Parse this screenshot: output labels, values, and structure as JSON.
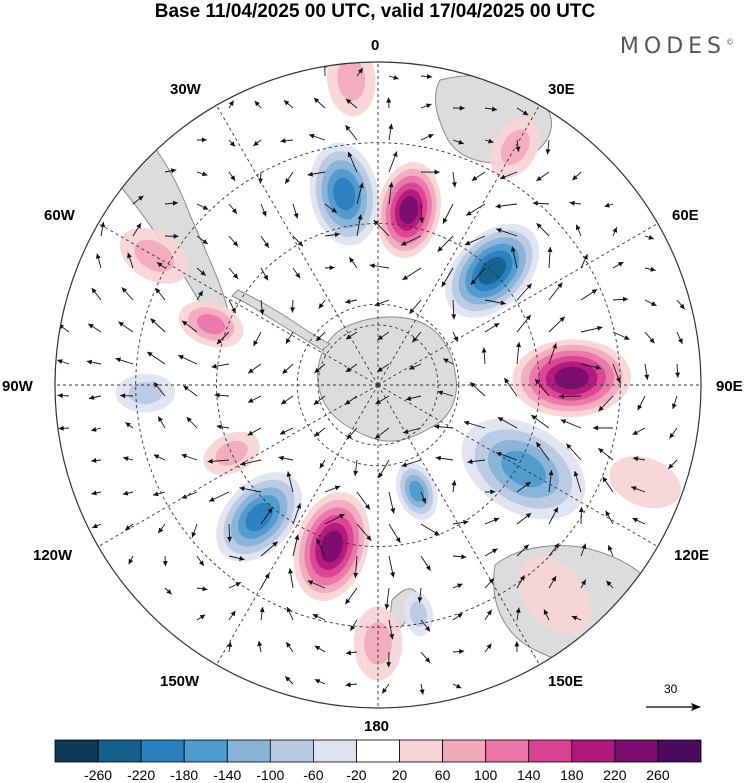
{
  "title": "Base 11/04/2025 00 UTC, valid 17/04/2025 00 UTC",
  "brand": "MODES",
  "brand_mark": "©",
  "map": {
    "projection": "south polar stereographic",
    "longitude_labels": {
      "top": "0",
      "top_right": "30E",
      "right_upper": "60E",
      "right": "90E",
      "right_lower": "120E",
      "bottom_right": "150E",
      "bottom": "180",
      "bottom_left": "150W",
      "left_lower": "120W",
      "left": "90W",
      "left_upper": "60W",
      "top_left": "30W"
    },
    "reference_vector_label": "30",
    "colors": {
      "land": "#dedede",
      "coast": "#888888",
      "grid": "#333333"
    }
  },
  "colorbar": {
    "labels": [
      "-260",
      "-220",
      "-180",
      "-140",
      "-100",
      "-60",
      "-20",
      "20",
      "60",
      "100",
      "140",
      "180",
      "220",
      "260"
    ],
    "colors": [
      "#0e3a5a",
      "#155f8c",
      "#2a7fbf",
      "#4e9bcd",
      "#86b3d8",
      "#b9c9e3",
      "#e0e2f0",
      "#ffffff",
      "#f7d4d6",
      "#f2a9be",
      "#ea75a8",
      "#d94194",
      "#b1177e",
      "#7a0d6d",
      "#4b0a5f"
    ]
  },
  "anomalies": [
    {
      "lon": 10,
      "r": 0.55,
      "v": 230,
      "size": 0.13
    },
    {
      "lon": 350,
      "r": 0.6,
      "v": -160,
      "size": 0.14
    },
    {
      "lon": 45,
      "r": 0.5,
      "v": -200,
      "size": 0.15
    },
    {
      "lon": 88,
      "r": 0.6,
      "v": 210,
      "size": 0.16
    },
    {
      "lon": 120,
      "r": 0.52,
      "v": -140,
      "size": 0.18
    },
    {
      "lon": 160,
      "r": 0.35,
      "v": -120,
      "size": 0.08
    },
    {
      "lon": 196,
      "r": 0.52,
      "v": 200,
      "size": 0.15
    },
    {
      "lon": 222,
      "r": 0.55,
      "v": -180,
      "size": 0.14
    },
    {
      "lon": 290,
      "r": 0.55,
      "v": 80,
      "size": 0.09
    },
    {
      "lon": 268,
      "r": 0.72,
      "v": -50,
      "size": 0.08
    },
    {
      "lon": 245,
      "r": 0.5,
      "v": 60,
      "size": 0.08
    },
    {
      "lon": 300,
      "r": 0.8,
      "v": 50,
      "size": 0.1
    },
    {
      "lon": 355,
      "r": 0.95,
      "v": 40,
      "size": 0.1
    },
    {
      "lon": 110,
      "r": 0.88,
      "v": 30,
      "size": 0.1
    },
    {
      "lon": 30,
      "r": 0.85,
      "v": 50,
      "size": 0.09
    },
    {
      "lon": 180,
      "r": 0.8,
      "v": 40,
      "size": 0.1
    },
    {
      "lon": 140,
      "r": 0.85,
      "v": 30,
      "size": 0.12
    },
    {
      "lon": 170,
      "r": 0.72,
      "v": -60,
      "size": 0.06
    }
  ]
}
